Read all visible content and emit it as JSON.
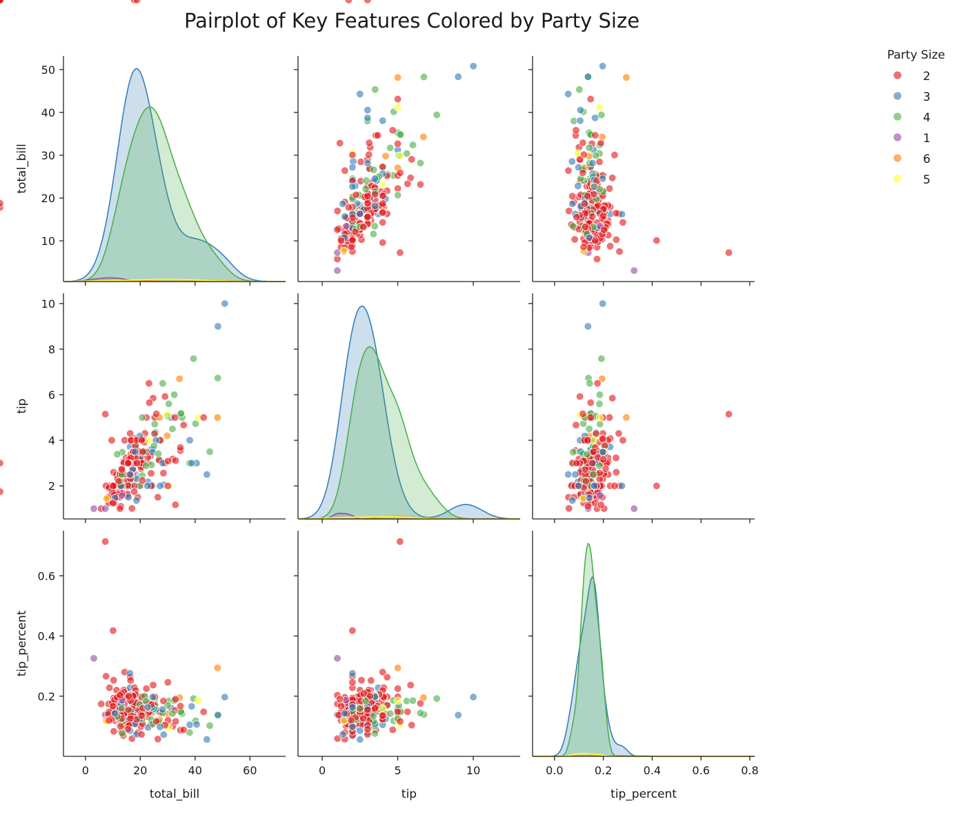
{
  "chart_data": {
    "type": "scatter",
    "title": "Pairplot of Key Features Colored by Party Size",
    "variables": [
      "total_bill",
      "tip",
      "tip_percent"
    ],
    "legend": {
      "title": "Party Size",
      "placement": "right",
      "entries": [
        {
          "label": "2",
          "color": "#e41a1c"
        },
        {
          "label": "3",
          "color": "#377eb8"
        },
        {
          "label": "4",
          "color": "#4daf4a"
        },
        {
          "label": "1",
          "color": "#984ea3"
        },
        {
          "label": "6",
          "color": "#ff7f00"
        },
        {
          "label": "5",
          "color": "#ffff33"
        }
      ]
    },
    "axes": {
      "total_bill": {
        "label": "total_bill",
        "range": [
          -8,
          73
        ],
        "ticks": [
          0,
          20,
          40,
          60
        ],
        "tick_labels": [
          "0",
          "20",
          "40",
          "60"
        ]
      },
      "tip": {
        "label": "tip",
        "range": [
          -1.6,
          13.1
        ],
        "ticks": [
          0,
          5,
          10
        ],
        "tick_labels": [
          "0",
          "5",
          "10"
        ]
      },
      "tip_percent": {
        "label": "tip_percent",
        "range": [
          -0.09,
          0.82
        ],
        "ticks": [
          0.0,
          0.2,
          0.4,
          0.6,
          0.8
        ],
        "tick_labels": [
          "0.0",
          "0.2",
          "0.4",
          "0.6",
          "0.8"
        ]
      }
    },
    "row_axes": {
      "total_bill": {
        "range": [
          0.5,
          53.2
        ],
        "ticks": [
          10,
          20,
          30,
          40,
          50
        ],
        "tick_labels": [
          "10",
          "20",
          "30",
          "40",
          "50"
        ]
      },
      "tip": {
        "range": [
          0.55,
          10.45
        ],
        "ticks": [
          2,
          4,
          6,
          8,
          10
        ],
        "tick_labels": [
          "2",
          "4",
          "6",
          "8",
          "10"
        ]
      },
      "tip_percent": {
        "range": [
          0.0,
          0.75
        ],
        "ticks": [
          0.2,
          0.4,
          0.6
        ],
        "tick_labels": [
          "0.2",
          "0.4",
          "0.6"
        ]
      }
    },
    "points": {
      "total_bill": [
        16.99,
        10.34,
        21.01,
        23.68,
        24.59,
        25.29,
        8.77,
        26.88,
        15.04,
        14.78,
        10.27,
        35.26,
        15.42,
        18.43,
        14.83,
        21.58,
        10.33,
        16.29,
        16.97,
        20.65,
        17.92,
        20.29,
        15.77,
        39.42,
        19.82,
        17.81,
        13.37,
        12.69,
        21.7,
        19.65,
        9.55,
        18.35,
        15.06,
        20.69,
        17.78,
        24.06,
        16.31,
        16.93,
        18.69,
        31.27,
        16.04,
        17.46,
        13.94,
        9.68,
        30.4,
        18.29,
        22.23,
        32.4,
        28.55,
        18.04,
        12.54,
        10.29,
        34.81,
        9.94,
        25.56,
        19.49,
        38.01,
        26.41,
        11.24,
        48.27,
        20.29,
        13.81,
        11.02,
        18.29,
        17.59,
        20.08,
        16.45,
        3.07,
        20.23,
        15.01,
        12.02,
        17.07,
        26.86,
        25.28,
        14.73,
        10.51,
        17.92,
        27.2,
        22.76,
        17.29,
        19.44,
        16.66,
        10.07,
        32.68,
        15.98,
        34.83,
        13.03,
        18.28,
        24.71,
        21.16,
        28.97,
        22.49,
        5.75,
        16.32,
        22.75,
        40.17,
        27.28,
        12.03,
        21.01,
        12.46,
        11.35,
        15.38,
        44.3,
        22.42,
        20.92,
        15.36,
        20.49,
        25.21,
        18.24,
        14.31,
        14.0,
        7.25,
        38.07,
        23.95,
        25.71,
        17.31,
        29.93,
        10.65,
        12.43,
        24.08,
        11.69,
        13.42,
        14.26,
        15.95,
        12.48,
        29.8,
        8.52,
        14.52,
        11.38,
        22.82,
        19.08,
        20.27,
        11.17,
        12.26,
        18.26,
        8.51,
        10.33,
        14.15,
        16.0,
        13.16,
        17.47,
        34.3,
        41.19,
        27.05,
        16.43,
        8.35,
        18.64,
        11.87,
        9.78,
        7.51,
        14.07,
        13.13,
        17.26,
        24.55,
        19.77,
        29.85,
        48.17,
        25.0,
        13.39,
        16.49,
        21.5,
        12.66,
        16.21,
        13.81,
        17.51,
        24.52,
        20.76,
        31.71,
        10.59,
        10.63,
        50.81,
        15.81,
        7.25,
        31.85,
        16.82,
        32.9,
        17.89,
        14.48,
        9.6,
        34.63,
        34.65,
        23.33,
        45.35,
        23.17,
        40.55,
        20.69,
        20.9,
        30.46,
        18.15,
        23.1,
        15.69,
        19.81,
        28.44,
        15.48,
        16.58,
        7.56,
        10.34,
        43.11,
        13.0,
        13.51,
        18.71,
        12.74,
        13.0,
        16.4,
        20.53,
        16.47,
        26.59,
        38.73,
        24.27,
        12.76,
        30.06,
        25.89,
        48.33,
        13.27,
        28.17,
        12.9,
        28.15,
        11.59,
        7.74,
        30.14,
        12.16,
        13.42,
        8.58,
        15.98,
        13.42,
        16.27,
        10.09,
        20.45,
        13.28,
        22.12,
        24.01,
        15.69,
        11.61,
        10.77,
        15.53,
        10.07,
        12.6,
        32.83,
        35.83,
        29.03,
        27.18,
        22.67,
        17.82,
        18.78
      ],
      "tip": [
        1.01,
        1.66,
        3.5,
        3.31,
        3.61,
        4.71,
        2.0,
        3.12,
        1.96,
        3.23,
        1.71,
        5.0,
        1.57,
        3.0,
        3.02,
        3.92,
        1.67,
        3.71,
        3.5,
        3.35,
        4.08,
        2.75,
        2.23,
        7.58,
        3.18,
        2.34,
        2.0,
        2.0,
        4.3,
        3.0,
        1.45,
        2.5,
        3.0,
        2.45,
        3.27,
        3.6,
        2.0,
        3.07,
        2.31,
        5.0,
        2.24,
        2.54,
        3.06,
        1.32,
        5.6,
        3.0,
        5.0,
        6.0,
        2.05,
        3.0,
        2.5,
        2.6,
        5.2,
        1.56,
        4.34,
        3.51,
        3.0,
        1.5,
        1.76,
        6.73,
        3.21,
        2.0,
        1.98,
        3.76,
        2.64,
        3.15,
        2.47,
        1.0,
        2.01,
        2.09,
        1.97,
        3.0,
        3.14,
        5.0,
        2.2,
        1.25,
        3.08,
        4.0,
        3.0,
        2.71,
        3.0,
        3.4,
        1.83,
        5.0,
        2.03,
        5.17,
        2.0,
        4.0,
        5.85,
        3.0,
        3.0,
        3.5,
        1.0,
        4.3,
        3.25,
        4.73,
        4.0,
        1.5,
        3.0,
        1.5,
        2.5,
        3.0,
        2.5,
        3.48,
        4.08,
        1.64,
        4.06,
        4.29,
        3.76,
        4.0,
        3.0,
        1.0,
        4.0,
        2.55,
        4.0,
        3.5,
        5.07,
        1.5,
        1.8,
        2.92,
        2.31,
        1.68,
        2.5,
        2.0,
        2.52,
        4.2,
        1.48,
        2.0,
        2.0,
        2.18,
        1.5,
        2.83,
        1.5,
        2.0,
        3.25,
        1.25,
        2.0,
        2.0,
        2.0,
        2.75,
        3.5,
        6.7,
        5.0,
        5.0,
        2.3,
        1.5,
        1.36,
        1.63,
        1.73,
        2.0,
        2.5,
        2.0,
        2.74,
        2.0,
        2.0,
        5.14,
        5.0,
        3.75,
        2.61,
        2.0,
        3.5,
        2.5,
        2.0,
        2.0,
        3.0,
        3.48,
        2.24,
        4.5,
        1.61,
        2.0,
        10.0,
        3.16,
        5.15,
        3.18,
        4.0,
        3.11,
        2.0,
        2.0,
        4.0,
        3.55,
        3.68,
        5.65,
        3.5,
        6.5,
        3.0,
        5.0,
        3.5,
        2.0,
        3.5,
        4.0,
        1.5,
        4.19,
        2.56,
        2.02,
        4.0,
        1.44,
        2.0,
        5.0,
        2.0,
        2.0,
        4.0,
        2.01,
        2.0,
        2.5,
        4.0,
        3.23,
        3.41,
        3.0,
        2.03,
        2.23,
        2.0,
        5.16,
        9.0,
        2.5,
        6.5,
        1.1,
        3.0,
        1.5,
        1.44,
        3.09,
        2.2,
        3.48,
        1.92,
        3.0,
        1.58,
        2.5,
        2.0,
        3.0,
        2.72,
        2.88,
        2.0,
        3.0,
        3.39,
        1.47,
        3.0,
        1.25,
        1.0,
        1.17,
        4.67,
        5.92,
        2.0,
        2.0,
        1.75,
        3.0
      ],
      "tip_percent": [
        0.059,
        0.161,
        0.167,
        0.14,
        0.147,
        0.186,
        0.228,
        0.116,
        0.13,
        0.219,
        0.167,
        0.142,
        0.102,
        0.163,
        0.204,
        0.182,
        0.162,
        0.228,
        0.206,
        0.162,
        0.228,
        0.136,
        0.141,
        0.192,
        0.16,
        0.131,
        0.15,
        0.158,
        0.198,
        0.153,
        0.152,
        0.136,
        0.199,
        0.118,
        0.184,
        0.15,
        0.123,
        0.181,
        0.124,
        0.16,
        0.14,
        0.145,
        0.22,
        0.136,
        0.184,
        0.164,
        0.225,
        0.185,
        0.072,
        0.166,
        0.199,
        0.253,
        0.149,
        0.157,
        0.17,
        0.18,
        0.079,
        0.057,
        0.157,
        0.139,
        0.158,
        0.145,
        0.18,
        0.206,
        0.15,
        0.157,
        0.15,
        0.326,
        0.099,
        0.139,
        0.164,
        0.176,
        0.117,
        0.198,
        0.149,
        0.119,
        0.172,
        0.147,
        0.132,
        0.157,
        0.154,
        0.204,
        0.182,
        0.153,
        0.127,
        0.148,
        0.153,
        0.219,
        0.237,
        0.142,
        0.104,
        0.156,
        0.174,
        0.263,
        0.143,
        0.118,
        0.147,
        0.125,
        0.143,
        0.12,
        0.22,
        0.195,
        0.056,
        0.155,
        0.195,
        0.107,
        0.198,
        0.17,
        0.206,
        0.28,
        0.214,
        0.138,
        0.105,
        0.106,
        0.156,
        0.202,
        0.169,
        0.141,
        0.145,
        0.121,
        0.198,
        0.125,
        0.175,
        0.125,
        0.202,
        0.141,
        0.174,
        0.138,
        0.176,
        0.096,
        0.079,
        0.14,
        0.134,
        0.163,
        0.178,
        0.147,
        0.194,
        0.141,
        0.125,
        0.209,
        0.2,
        0.195,
        0.185,
        0.122,
        0.185,
        0.14,
        0.073,
        0.137,
        0.177,
        0.266,
        0.142,
        0.081,
        0.111,
        0.107,
        0.172,
        0.104,
        0.294,
        0.158,
        0.106,
        0.15,
        0.2,
        0.158,
        0.276,
        0.069,
        0.133,
        0.197,
        0.108,
        0.142,
        0.142,
        0.188,
        0.197,
        0.2,
        0.714,
        0.1,
        0.125,
        0.116,
        0.107,
        0.103,
        0.124,
        0.087,
        0.167,
        0.148,
        0.102,
        0.176,
        0.106,
        0.125,
        0.16,
        0.095,
        0.108,
        0.16,
        0.121,
        0.124,
        0.184,
        0.108,
        0.135,
        0.12,
        0.083,
        0.148,
        0.188,
        0.114,
        0.123,
        0.1,
        0.173,
        0.125,
        0.135,
        0.252,
        0.116,
        0.166,
        0.163,
        0.122,
        0.246,
        0.116,
        0.137,
        0.159,
        0.144,
        0.137,
        0.156,
        0.196,
        0.117,
        0.12,
        0.129,
        0.076,
        0.119,
        0.103,
        0.187,
        0.085,
        0.418,
        0.073,
        0.126,
        0.184,
        0.172,
        0.155,
        0.133,
        0.143,
        0.09,
        0.167,
        0.203,
        0.19,
        0.088,
        0.104,
        0.098,
        0.163
      ],
      "party_size": [
        2,
        3,
        3,
        2,
        4,
        4,
        2,
        4,
        2,
        2,
        2,
        4,
        2,
        4,
        2,
        2,
        3,
        3,
        3,
        3,
        2,
        2,
        2,
        4,
        2,
        4,
        2,
        2,
        2,
        2,
        2,
        4,
        2,
        4,
        2,
        3,
        3,
        3,
        3,
        3,
        3,
        2,
        2,
        2,
        4,
        2,
        2,
        4,
        3,
        2,
        2,
        2,
        4,
        2,
        4,
        2,
        4,
        2,
        2,
        4,
        2,
        2,
        2,
        4,
        3,
        3,
        2,
        1,
        2,
        2,
        2,
        3,
        2,
        2,
        2,
        2,
        2,
        4,
        2,
        2,
        2,
        2,
        1,
        2,
        2,
        4,
        2,
        2,
        2,
        2,
        2,
        2,
        2,
        2,
        2,
        4,
        2,
        2,
        2,
        2,
        2,
        2,
        3,
        2,
        2,
        2,
        2,
        2,
        2,
        2,
        2,
        1,
        3,
        2,
        3,
        2,
        4,
        2,
        2,
        4,
        2,
        2,
        2,
        2,
        2,
        6,
        2,
        2,
        2,
        3,
        2,
        2,
        2,
        2,
        2,
        2,
        2,
        2,
        2,
        2,
        2,
        6,
        5,
        6,
        2,
        2,
        3,
        2,
        2,
        2,
        2,
        2,
        3,
        4,
        4,
        5,
        6,
        4,
        2,
        4,
        4,
        2,
        3,
        2,
        2,
        3,
        2,
        4,
        2,
        2,
        3,
        2,
        2,
        2,
        2,
        2,
        2,
        2,
        2,
        2,
        2,
        2,
        4,
        2,
        3,
        4,
        2,
        5,
        3,
        5,
        3,
        3,
        2,
        2,
        2,
        2,
        2,
        2,
        2,
        4,
        2,
        2,
        3,
        2,
        2,
        2,
        4,
        3,
        3,
        4,
        2,
        2,
        3,
        4,
        4,
        2,
        3,
        2,
        5,
        2,
        2,
        4,
        2,
        2,
        1,
        3,
        2,
        2,
        2,
        4,
        2,
        2,
        4,
        3,
        2,
        2,
        2,
        2,
        2,
        2,
        3,
        3,
        2,
        2,
        2,
        2
      ]
    }
  }
}
